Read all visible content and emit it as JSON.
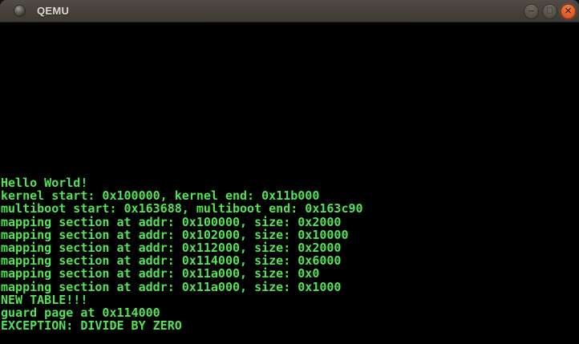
{
  "window": {
    "title": "QEMU",
    "controls": [
      {
        "name": "minimize",
        "glyph": "−"
      },
      {
        "name": "maximize",
        "glyph": "□"
      },
      {
        "name": "close",
        "glyph": "✕"
      }
    ]
  },
  "console": {
    "lines": [
      "Hello World!",
      "kernel start: 0x100000, kernel end: 0x11b000",
      "multiboot start: 0x163688, multiboot end: 0x163c90",
      "mapping section at addr: 0x100000, size: 0x2000",
      "mapping section at addr: 0x102000, size: 0x10000",
      "mapping section at addr: 0x112000, size: 0x2000",
      "mapping section at addr: 0x114000, size: 0x6000",
      "mapping section at addr: 0x11a000, size: 0x0",
      "mapping section at addr: 0x11a000, size: 0x1000",
      "NEW TABLE!!!",
      "guard page at 0x114000",
      "EXCEPTION: DIVIDE BY ZERO"
    ]
  },
  "colors": {
    "terminal_text": "#54e354",
    "terminal_bg": "#000000",
    "titlebar_bg": "#454139",
    "titlebar_text": "#dfdbd2",
    "close_button": "#e2602c"
  }
}
